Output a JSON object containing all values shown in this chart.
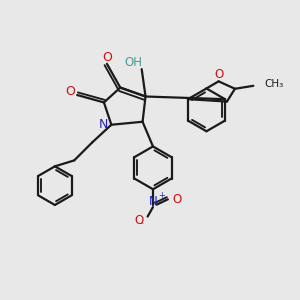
{
  "bg_color": "#e8e8e8",
  "bond_color": "#1a1a1a",
  "N_color": "#2222bb",
  "O_color": "#cc1111",
  "OH_color": "#4a9a9a",
  "line_width": 1.6,
  "figsize": [
    3.0,
    3.0
  ],
  "dpi": 100,
  "xlim": [
    0,
    10
  ],
  "ylim": [
    0,
    10
  ]
}
